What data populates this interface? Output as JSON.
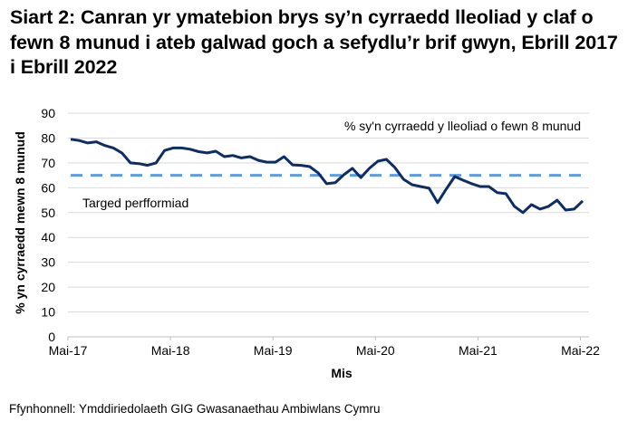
{
  "title": "Siart 2: Canran yr ymatebion brys sy’n cyrraedd lleoliad y claf o fewn 8 munud i ateb galwad goch a sefydlu’r brif gwyn, Ebrill 2017 i Ebrill 2022",
  "source": "Ffynhonnell: Ymddiriedolaeth GIG Gwasanaethau Ambiwlans Cymru",
  "colors": {
    "series": "#0e2d64",
    "target": "#5b9bea",
    "grid": "#d9d9d9"
  },
  "chart_data": {
    "type": "line",
    "title": "Siart 2: Canran yr ymatebion brys sy’n cyrraedd lleoliad y claf o fewn 8 munud i ateb galwad goch a sefydlu’r brif gwyn, Ebrill 2017 i Ebrill 2022",
    "xlabel": "Mis",
    "ylabel": "% yn cyrraedd mewn 8 munud",
    "ylim": [
      0,
      90
    ],
    "yticks": [
      "0",
      "10",
      "20",
      "30",
      "40",
      "50",
      "60",
      "70",
      "80",
      "90"
    ],
    "xticks": [
      "Mai-17",
      "Mai-18",
      "Mai-19",
      "Mai-20",
      "Mai-21",
      "Mai-22"
    ],
    "grid": true,
    "x_start": "Ebrill 2017",
    "x_end": "Ebrill 2022",
    "series": [
      {
        "name": "% sy'n cyrraedd y lleoliad o fewn 8 munud",
        "style": "solid",
        "values": [
          79.5,
          79,
          78,
          78.5,
          77,
          76,
          74,
          70,
          69.7,
          69,
          70,
          75,
          76,
          76,
          75.5,
          74.5,
          74,
          74.7,
          72.5,
          73,
          72,
          72.5,
          71,
          70.3,
          70.3,
          72.5,
          69.2,
          69,
          68.5,
          66,
          61.6,
          62,
          65.2,
          67.8,
          64.1,
          67.8,
          70.7,
          71.4,
          68.1,
          63.4,
          61.2,
          60.5,
          59.8,
          54,
          59.4,
          64.5,
          63,
          61.6,
          60.5,
          60.5,
          58,
          57.6,
          52.5,
          50,
          53.2,
          51.4,
          52.5,
          55,
          51,
          51.4,
          54.7
        ]
      },
      {
        "name": "Targed perfformiad",
        "style": "dashed",
        "values_constant": 65
      }
    ],
    "annotations": [
      "% sy'n cyrraedd y lleoliad o fewn 8 munud",
      "Targed perfformiad"
    ]
  }
}
